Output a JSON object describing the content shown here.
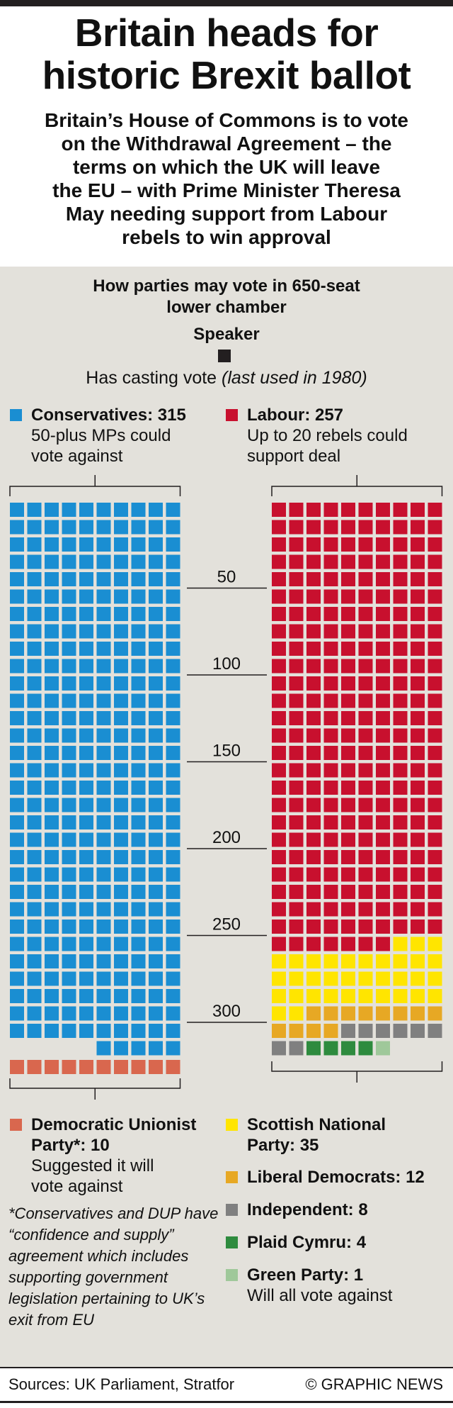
{
  "title_lines": [
    "Britain heads for",
    "historic Brexit ballot"
  ],
  "subtitle_lines": [
    "Britain’s House of Commons is to vote",
    "on the Withdrawal Agreement – the",
    "terms on which the UK will leave",
    "the EU – with Prime Minister Theresa",
    "May needing support from Labour",
    "rebels to win approval"
  ],
  "panel_title_lines": [
    "How parties may vote in 650-seat",
    "lower chamber"
  ],
  "speaker": {
    "label": "Speaker",
    "note": "Has casting vote",
    "note_italic": "(last used in 1980)",
    "color": "#231f20"
  },
  "legend": {
    "conservatives": {
      "name": "Conservatives: 315",
      "desc": [
        "50-plus MPs could",
        "vote against"
      ],
      "color": "#1a8ed2"
    },
    "labour": {
      "name": "Labour: 257",
      "desc": [
        "Up to 20 rebels could",
        "support deal"
      ],
      "color": "#c8102e"
    },
    "dup": {
      "name": [
        "Democratic Unionist",
        "Party*: 10"
      ],
      "desc": [
        "Suggested it will",
        "vote against"
      ],
      "color": "#d9674e"
    },
    "snp": {
      "name": [
        "Scottish National",
        "Party: 35"
      ],
      "color": "#ffe500"
    },
    "libdem": {
      "name": "Liberal Democrats: 12",
      "color": "#e7a824"
    },
    "independent": {
      "name": "Independent: 8",
      "color": "#808080"
    },
    "plaid": {
      "name": "Plaid Cymru: 4",
      "color": "#2e8b3e"
    },
    "green": {
      "name": "Green Party: 1",
      "desc": "Will all vote against",
      "color": "#9fc89a"
    }
  },
  "footnote": "*Conservatives and DUP have “confidence and supply” agreement which includes supporting government legislation pertaining to UK’s exit from EU",
  "footer": {
    "source": "Sources: UK Parliament, Stratfor",
    "credit": "© GRAPHIC NEWS"
  },
  "chart_data": {
    "type": "waffle",
    "total_seats": 650,
    "columns_per_row": 10,
    "scale_ticks": [
      50,
      100,
      150,
      200,
      250,
      300
    ],
    "blocks": [
      {
        "side": "left",
        "segments": [
          {
            "party": "Conservatives",
            "seats": 315,
            "color": "#1a8ed2"
          }
        ]
      },
      {
        "side": "left_bottom",
        "segments": [
          {
            "party": "Democratic Unionist Party",
            "seats": 10,
            "color": "#d9674e"
          }
        ]
      },
      {
        "side": "right",
        "segments": [
          {
            "party": "Labour",
            "seats": 257,
            "color": "#c8102e"
          },
          {
            "party": "Scottish National Party",
            "seats": 35,
            "color": "#ffe500"
          },
          {
            "party": "Liberal Democrats",
            "seats": 12,
            "color": "#e7a824"
          },
          {
            "party": "Independent",
            "seats": 8,
            "color": "#808080"
          },
          {
            "party": "Plaid Cymru",
            "seats": 4,
            "color": "#2e8b3e"
          },
          {
            "party": "Green Party",
            "seats": 1,
            "color": "#9fc89a"
          }
        ]
      }
    ]
  }
}
